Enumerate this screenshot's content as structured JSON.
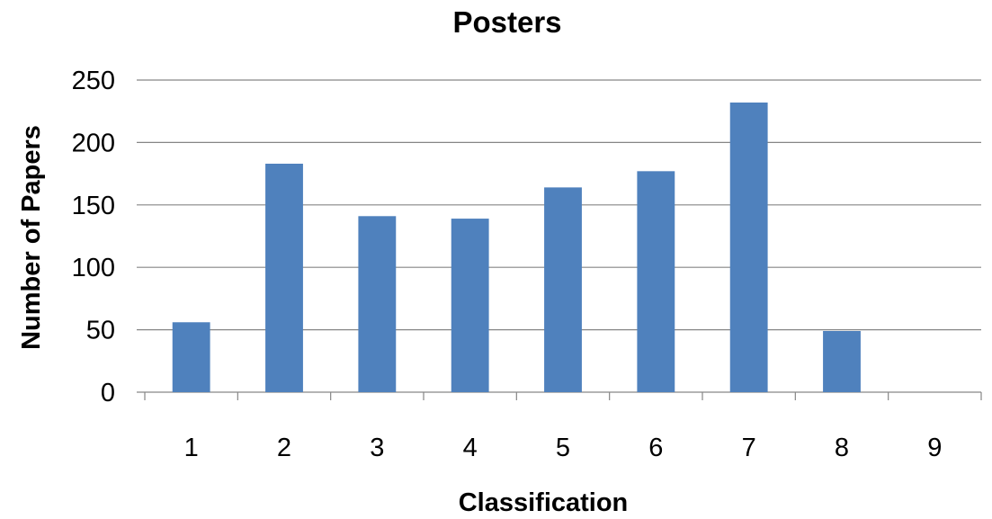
{
  "chart_data": {
    "type": "bar",
    "title": "Posters",
    "xlabel": "Classification",
    "ylabel": "Number of Papers",
    "categories": [
      "1",
      "2",
      "3",
      "4",
      "5",
      "6",
      "7",
      "8",
      "9"
    ],
    "values": [
      56,
      183,
      141,
      139,
      164,
      177,
      232,
      49,
      0
    ],
    "ylim": [
      0,
      250
    ],
    "yticks": [
      0,
      50,
      100,
      150,
      200,
      250
    ],
    "grid": true,
    "legend": "none",
    "bar_color": "#4F81BD"
  }
}
